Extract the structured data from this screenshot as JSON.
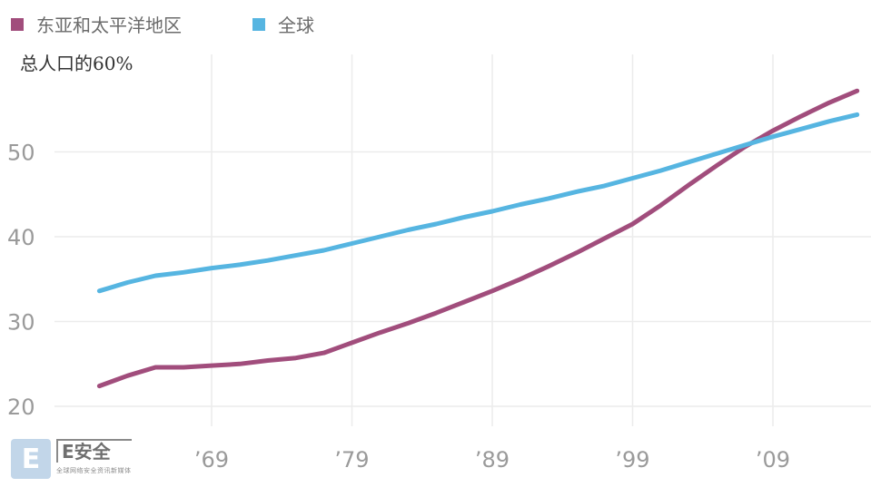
{
  "legend": {
    "items": [
      {
        "label": "东亚和太平洋地区",
        "color": "#a14d7c"
      },
      {
        "label": "全球",
        "color": "#56b5e1"
      }
    ]
  },
  "note": "总人口的60%",
  "watermark": {
    "badge": "E",
    "brand": "E安全",
    "tagline": "全球网络安全资讯新媒体"
  },
  "chart_data": {
    "type": "line",
    "x": [
      1961,
      1963,
      1965,
      1967,
      1969,
      1971,
      1973,
      1975,
      1977,
      1979,
      1981,
      1983,
      1985,
      1987,
      1989,
      1991,
      1993,
      1995,
      1997,
      1999,
      2001,
      2003,
      2005,
      2007,
      2009,
      2011,
      2013,
      2015
    ],
    "xticks": [
      1969,
      1979,
      1989,
      1999,
      2009
    ],
    "xtick_labels": [
      "’69",
      "’79",
      "’89",
      "’99",
      "’09"
    ],
    "yticks": [
      20,
      30,
      40,
      50
    ],
    "ylim": [
      18,
      60
    ],
    "grid": true,
    "series": [
      {
        "name": "东亚和太平洋地区",
        "color": "#a14d7c",
        "values": [
          22.4,
          23.6,
          24.6,
          24.6,
          24.8,
          25.0,
          25.4,
          25.7,
          26.3,
          27.5,
          28.7,
          29.8,
          31.0,
          32.3,
          33.6,
          35.0,
          36.5,
          38.1,
          39.8,
          41.5,
          43.7,
          46.1,
          48.4,
          50.6,
          52.5,
          54.2,
          55.8,
          57.2
        ]
      },
      {
        "name": "全球",
        "color": "#56b5e1",
        "values": [
          33.6,
          34.6,
          35.4,
          35.8,
          36.3,
          36.7,
          37.2,
          37.8,
          38.4,
          39.2,
          40.0,
          40.8,
          41.5,
          42.3,
          43.0,
          43.8,
          44.5,
          45.3,
          46.0,
          46.9,
          47.8,
          48.8,
          49.8,
          50.8,
          51.8,
          52.7,
          53.6,
          54.4
        ]
      }
    ]
  }
}
